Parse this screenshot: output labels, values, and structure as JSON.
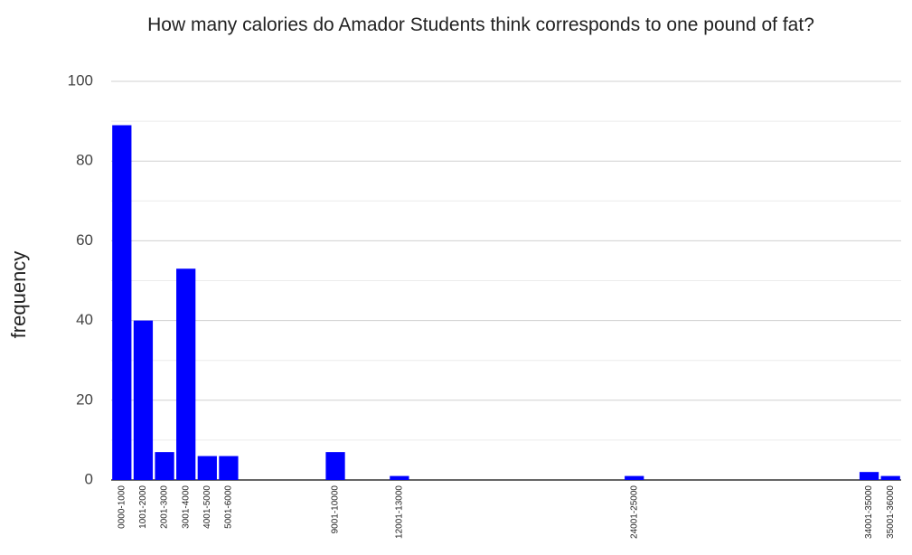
{
  "chart_data": {
    "type": "bar",
    "title": "How many calories do Amador Students think corresponds to one pound of fat?",
    "y_label": "frequency",
    "categories": [
      "0000-1000",
      "1001-2000",
      "2001-3000",
      "3001-4000",
      "4001-5000",
      "5001-6000",
      null,
      null,
      null,
      null,
      "9001-10000",
      null,
      null,
      "12001-13000",
      null,
      null,
      null,
      null,
      null,
      null,
      null,
      null,
      null,
      null,
      "24001-25000",
      null,
      null,
      null,
      null,
      null,
      null,
      null,
      null,
      null,
      null,
      "34001-35000",
      "35001-36000"
    ],
    "values": [
      89,
      40,
      7,
      53,
      6,
      6,
      0,
      0,
      0,
      0,
      7,
      0,
      0,
      1,
      0,
      0,
      0,
      0,
      0,
      0,
      0,
      0,
      0,
      0,
      1,
      0,
      0,
      0,
      0,
      0,
      0,
      0,
      0,
      0,
      0,
      2,
      1
    ],
    "color": "#0000ff",
    "ylim": [
      0,
      100
    ],
    "yticks": [
      0,
      20,
      40,
      60,
      80,
      100
    ],
    "minor_yticks": [
      10,
      30,
      50,
      70,
      90
    ],
    "grid": true
  }
}
